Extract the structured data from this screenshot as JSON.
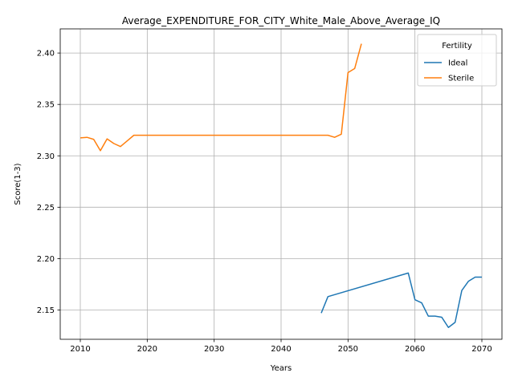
{
  "chart_data": {
    "type": "line",
    "title": "Average_EXPENDITURE_FOR_CITY_White_Male_Above_Average_IQ",
    "xlabel": "Years",
    "ylabel": "Score(1-3)",
    "xlim": [
      2007,
      2073
    ],
    "ylim": [
      2.1215,
      2.4235
    ],
    "xticks": [
      2010,
      2020,
      2030,
      2040,
      2050,
      2060,
      2070
    ],
    "yticks": [
      2.15,
      2.2,
      2.25,
      2.3,
      2.35,
      2.4
    ],
    "grid": true,
    "legend": {
      "title": "Fertility",
      "placement": "top-right"
    },
    "series": [
      {
        "name": "Ideal",
        "color": "#1f77b4",
        "x": [
          2046,
          2047,
          2059,
          2060,
          2061,
          2062,
          2063,
          2064,
          2065,
          2066,
          2067,
          2068,
          2069,
          2070
        ],
        "y": [
          2.147,
          2.163,
          2.186,
          2.16,
          2.157,
          2.144,
          2.144,
          2.143,
          2.133,
          2.138,
          2.169,
          2.178,
          2.182,
          2.182
        ]
      },
      {
        "name": "Sterile",
        "color": "#ff7f0e",
        "x": [
          2010,
          2011,
          2012,
          2013,
          2014,
          2015,
          2016,
          2017,
          2018,
          2019,
          2020,
          2030,
          2040,
          2046,
          2047,
          2048,
          2049,
          2050,
          2051,
          2052
        ],
        "y": [
          2.3175,
          2.318,
          2.316,
          2.305,
          2.3165,
          2.312,
          2.309,
          2.3145,
          2.32,
          2.32,
          2.32,
          2.32,
          2.32,
          2.32,
          2.32,
          2.318,
          2.321,
          2.381,
          2.385,
          2.409
        ]
      }
    ]
  }
}
